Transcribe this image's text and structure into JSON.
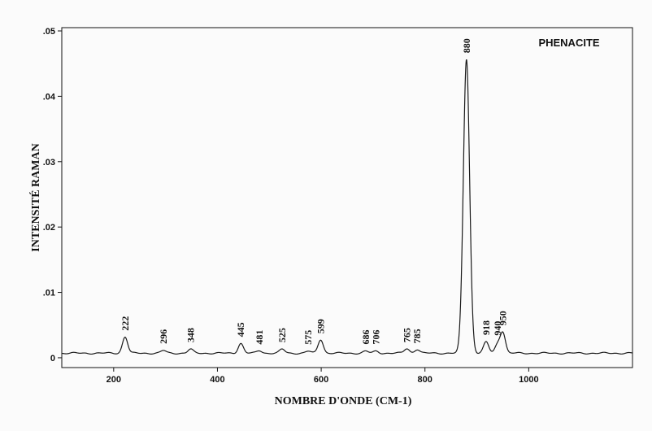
{
  "chart_data": {
    "type": "line",
    "title": "PHENACITE",
    "xlabel": "NOMBRE D'ONDE (CM-1)",
    "ylabel": "INTENSITÉ RAMAN",
    "xlim": [
      100,
      1200
    ],
    "ylim": [
      -0.0015,
      0.0505
    ],
    "x_ticks": [
      200,
      400,
      600,
      800,
      1000
    ],
    "x_tick_labels": [
      "200",
      "400",
      "600",
      "800",
      "1000"
    ],
    "y_ticks": [
      0,
      0.01,
      0.02,
      0.03,
      0.04,
      0.05
    ],
    "y_tick_labels": [
      "0",
      ".01",
      ".02",
      ".03",
      ".04",
      ".05"
    ],
    "grid": false,
    "line_color": "#1a1a1a",
    "baseline": 0.0007,
    "peaks": [
      {
        "label": "222",
        "x": 222,
        "height": 0.0025
      },
      {
        "label": "296",
        "x": 296,
        "height": 0.0004
      },
      {
        "label": "348",
        "x": 348,
        "height": 0.0006
      },
      {
        "label": "445",
        "x": 445,
        "height": 0.0015
      },
      {
        "label": "481",
        "x": 481,
        "height": 0.0004
      },
      {
        "label": "525",
        "x": 525,
        "height": 0.0006
      },
      {
        "label": "575",
        "x": 575,
        "height": 0.0003
      },
      {
        "label": "599",
        "x": 599,
        "height": 0.0021
      },
      {
        "label": "686",
        "x": 686,
        "height": 0.0003
      },
      {
        "label": "706",
        "x": 706,
        "height": 0.0003
      },
      {
        "label": "765",
        "x": 765,
        "height": 0.0007
      },
      {
        "label": "785",
        "x": 785,
        "height": 0.0006
      },
      {
        "label": "880",
        "x": 880,
        "height": 0.045
      },
      {
        "label": "918",
        "x": 918,
        "height": 0.0017
      },
      {
        "label": "940",
        "x": 940,
        "height": 0.0013
      },
      {
        "label": "950",
        "x": 950,
        "height": 0.0032
      }
    ]
  }
}
